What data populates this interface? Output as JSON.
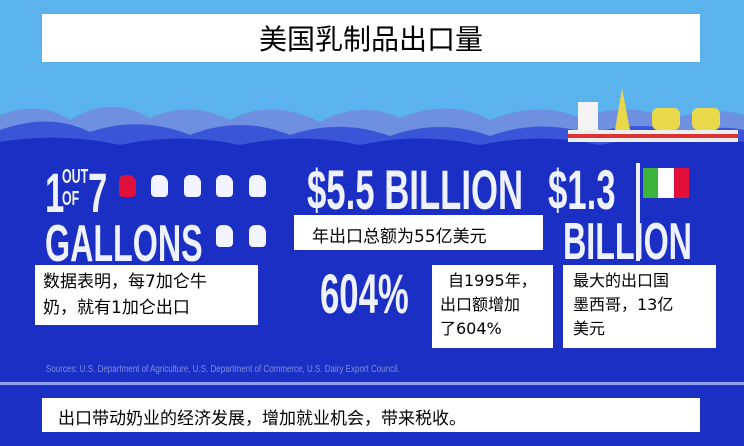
{
  "title": "美国乳制品出口量",
  "stats": {
    "gallons_one": "1",
    "gallons_out_of": "OUT OF",
    "gallons_seven": "7",
    "gallons_word": "GALLONS",
    "export_total": "$5.5 BILLION",
    "growth": "604%",
    "mexico_amount": "$1.3",
    "mexico_unit": "BILLION"
  },
  "gallon_icons": {
    "total": 7,
    "highlighted": 1,
    "highlight_color": "#e0103a"
  },
  "notes": {
    "gallons_line1": "数据表明，每7加仑牛",
    "gallons_line2": "奶，就有1加仑出口",
    "total": "年出口总额为55亿美元",
    "growth_line1": "自1995年，",
    "growth_line2": "出口额增加",
    "growth_line3": "了604%",
    "mexico_line1": "最大的出口国",
    "mexico_line2": "墨西哥，13亿",
    "mexico_line3": "美元"
  },
  "sources": "Sources: U.S. Department of Agriculture, U.S. Department of Commerce, U.S. Dairy Export Council.",
  "bottom_note": "出口带动奶业的经济发展，增加就业机会，带来税收。",
  "colors": {
    "sky": "#5ab3ec",
    "ocean": "#1b2fc4",
    "flag_green": "#3cb43c",
    "flag_red": "#e0103a"
  }
}
